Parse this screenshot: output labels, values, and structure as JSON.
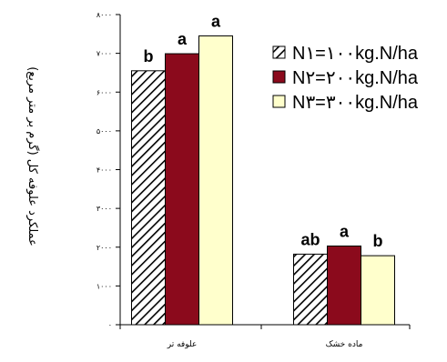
{
  "chart_data": {
    "type": "bar",
    "title": "",
    "ylabel": "عملکرد علوفه کل (گرم بر متر مربع)",
    "xlabel": "",
    "categories": [
      "علوفه تر",
      "ماده خشک"
    ],
    "ylim": [
      0,
      8000
    ],
    "yticks": [
      0,
      1000,
      2000,
      3000,
      4000,
      5000,
      6000,
      7000,
      8000
    ],
    "ytick_labels": [
      "۰",
      "۱۰۰۰",
      "۲۰۰۰",
      "۳۰۰۰",
      "۴۰۰۰",
      "۵۰۰۰",
      "۶۰۰۰",
      "۷۰۰۰",
      "۸۰۰۰"
    ],
    "grid": false,
    "legend_position": "top-right",
    "series": [
      {
        "name": "N۱=۱۰۰kg.N/ha",
        "values": [
          6550,
          1820
        ],
        "significance": [
          "b",
          "ab"
        ],
        "fill": "hatch",
        "color": "#000000"
      },
      {
        "name": "N۲=۲۰۰kg.N/ha",
        "values": [
          6990,
          2030
        ],
        "significance": [
          "a",
          "a"
        ],
        "fill": "solid",
        "color": "#8b0a1c"
      },
      {
        "name": "N۳=۳۰۰kg.N/ha",
        "values": [
          7450,
          1780
        ],
        "significance": [
          "a",
          "b"
        ],
        "fill": "solid",
        "color": "#ffffcc"
      }
    ]
  }
}
